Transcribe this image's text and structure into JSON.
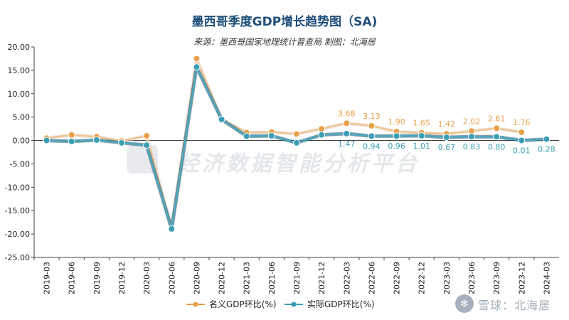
{
  "title": "墨西哥季度GDP增长趋势图（SA)",
  "subtitle": "来源：墨西哥国家地理统计普查局 制图：北海居",
  "watermark_text": "雪球：北海居",
  "background_watermark": "经济数据智能分析平台",
  "colors": {
    "nominal": "#e8a04a",
    "nominal_line": "#f3c48f",
    "real": "#3a9fb5",
    "real_line": "#4aa8c0",
    "real_band": "#1f4e63",
    "axis": "#444444",
    "grid": "#e6e6e6"
  },
  "chart_data": {
    "type": "line",
    "categories": [
      "2019-03",
      "2019-06",
      "2019-09",
      "2019-12",
      "2020-03",
      "2020-06",
      "2020-09",
      "2020-12",
      "2021-03",
      "2021-06",
      "2021-09",
      "2021-12",
      "2022-03",
      "2022-06",
      "2022-09",
      "2022-12",
      "2023-03",
      "2023-06",
      "2023-09",
      "2023-12",
      "2024-03"
    ],
    "ylim": [
      -25,
      20
    ],
    "y_ticks": [
      "20.00",
      "15.00",
      "10.00",
      "5.00",
      "0.00",
      "-5.00",
      "-10.00",
      "-15.00",
      "-20.00",
      "-25.00"
    ],
    "series": [
      {
        "name": "名义GDP环比(%)",
        "values": [
          0.5,
          1.2,
          0.8,
          -0.1,
          1.0,
          -18.7,
          17.5,
          4.5,
          1.7,
          1.8,
          1.4,
          2.5,
          3.68,
          3.13,
          1.9,
          1.65,
          1.42,
          2.02,
          2.61,
          1.76,
          null
        ],
        "labels": [
          "",
          "",
          "",
          "",
          "",
          "",
          "",
          "",
          "",
          "",
          "",
          "",
          "3.68",
          "3.13",
          "1.90",
          "1.65",
          "1.42",
          "2.02",
          "2.61",
          "1.76",
          ""
        ]
      },
      {
        "name": "实际GDP环比(%)",
        "values": [
          0.0,
          -0.2,
          0.1,
          -0.5,
          -1.0,
          -18.9,
          15.7,
          4.5,
          0.9,
          1.0,
          -0.5,
          1.2,
          1.47,
          0.94,
          0.96,
          1.01,
          0.67,
          0.83,
          0.8,
          0.01,
          0.28
        ],
        "labels": [
          "",
          "",
          "",
          "",
          "",
          "",
          "",
          "",
          "",
          "",
          "",
          "",
          "1.47",
          "0.94",
          "0.96",
          "1.01",
          "0.67",
          "0.83",
          "0.80",
          "0.01",
          "0.28"
        ]
      }
    ],
    "grid": false,
    "legend": "bottom-center"
  }
}
